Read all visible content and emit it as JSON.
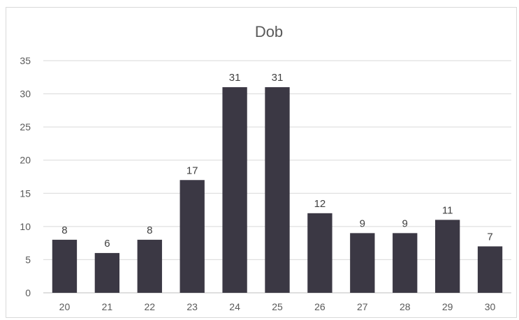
{
  "chart_data": {
    "type": "bar",
    "title": "Dob",
    "xlabel": "",
    "ylabel": "",
    "categories": [
      "20",
      "21",
      "22",
      "23",
      "24",
      "25",
      "26",
      "27",
      "28",
      "29",
      "30"
    ],
    "values": [
      8,
      6,
      8,
      17,
      31,
      31,
      12,
      9,
      9,
      11,
      7
    ],
    "yticks": [
      "0",
      "5",
      "10",
      "15",
      "20",
      "25",
      "30",
      "35"
    ],
    "ylim": [
      0,
      35
    ],
    "grid": true,
    "legend": "none",
    "colors": {
      "bar": "#3b3844",
      "grid": "#d9d9d9",
      "axis": "#bfbfbf",
      "text": "#595959"
    }
  }
}
